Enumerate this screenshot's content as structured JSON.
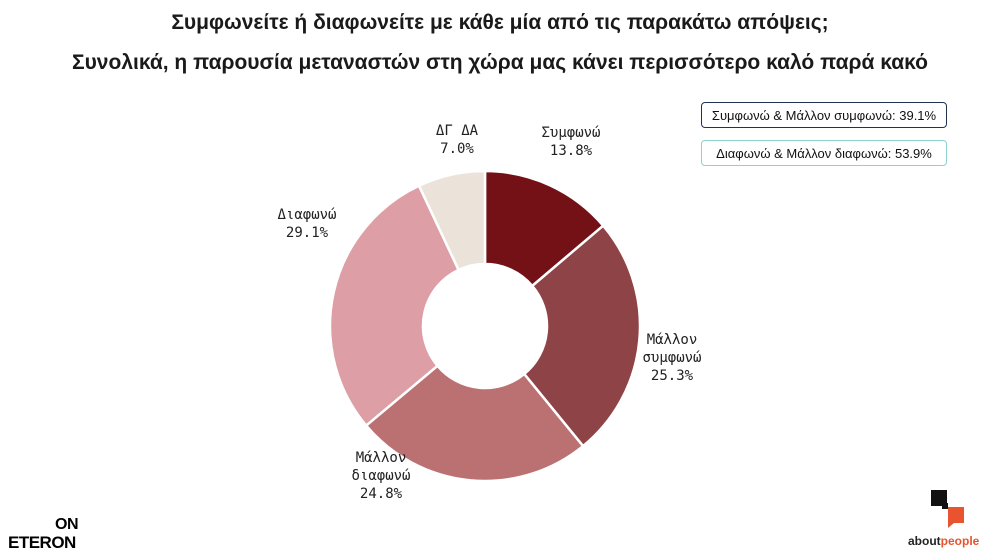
{
  "titles": {
    "question": "Συμφωνείτε ή διαφωνείτε με κάθε μία από τις παρακάτω απόψεις;",
    "statement": "Συνολικά, η παρουσία μεταναστών στη χώρα μας κάνει περισσότερο καλό παρά κακό"
  },
  "summary": {
    "agree_total": "Συμφωνώ & Μάλλον συμφωνώ: 39.1%",
    "disagree_total": "Διαφωνώ & Μάλλον διαφωνώ: 53.9%"
  },
  "chart_data": {
    "type": "pie",
    "donut": true,
    "slices": [
      {
        "label": [
          "Συμφωνώ"
        ],
        "value": 13.8,
        "value_label": "13.8%",
        "color": "#731117"
      },
      {
        "label": [
          "Μάλλον",
          "συμφωνώ"
        ],
        "value": 25.3,
        "value_label": "25.3%",
        "color": "#8e4447"
      },
      {
        "label": [
          "Μάλλον",
          "διαφωνώ"
        ],
        "value": 24.8,
        "value_label": "24.8%",
        "color": "#bb7071"
      },
      {
        "label": [
          "Διαφωνώ"
        ],
        "value": 29.1,
        "value_label": "29.1%",
        "color": "#de9ea5"
      },
      {
        "label": [
          "ΔΓ ΔΑ"
        ],
        "value": 7.0,
        "value_label": "7.0%",
        "color": "#ebe3da"
      }
    ],
    "start": "top",
    "direction": "clockwise"
  },
  "logos": {
    "left_top": "ON",
    "left_bottom": "ETERON",
    "right_prefix": "about",
    "right_suffix": "people"
  },
  "colors": {
    "logo_accent": "#e8542f",
    "agree_box_border": "#1f3350",
    "disagree_box_border": "#8fd0d0"
  }
}
